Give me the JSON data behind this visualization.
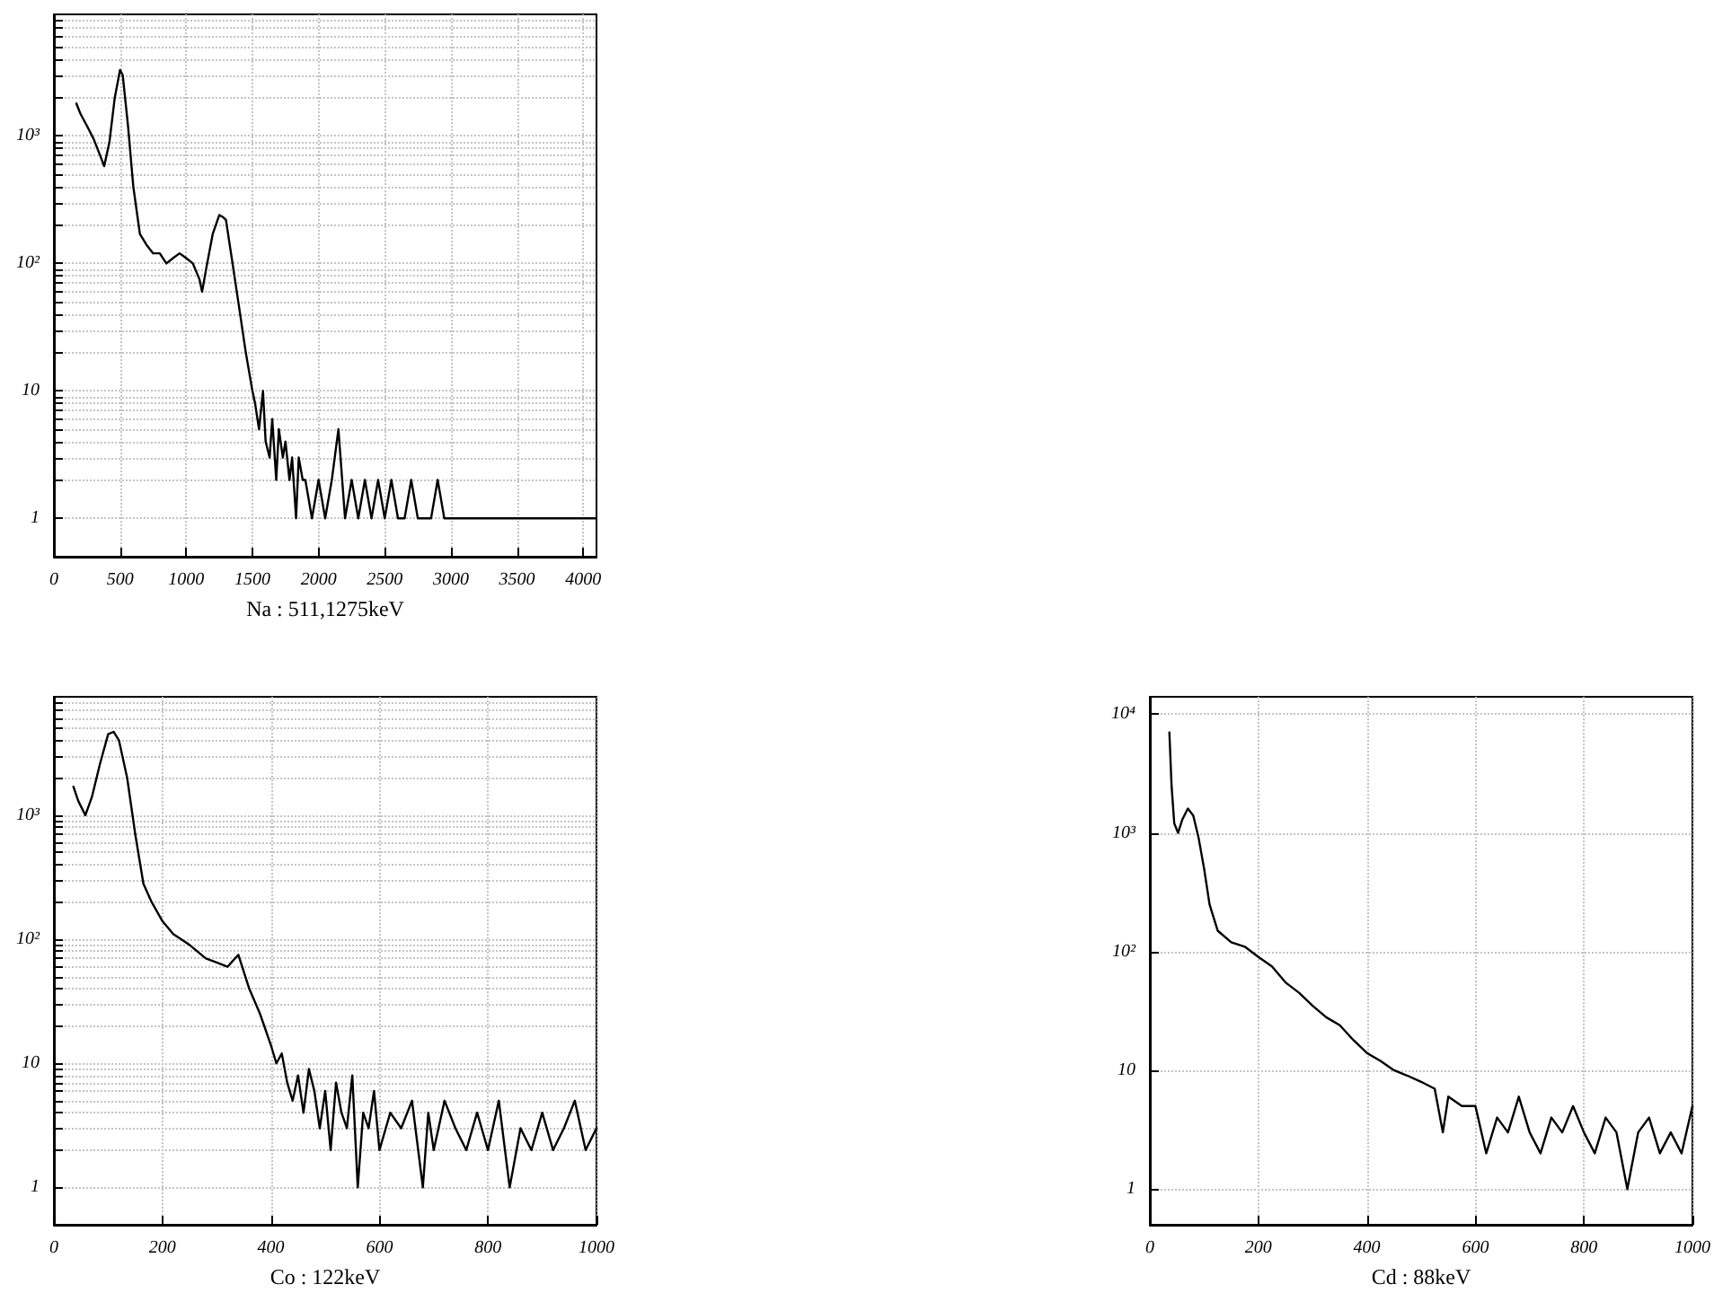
{
  "chart_data": [
    {
      "type": "line",
      "xlabel": "Na : 511,1275keV",
      "log": "y",
      "grid": true,
      "xlim": [
        0,
        4100
      ],
      "ylim": [
        0.5,
        9000
      ],
      "xticks": [
        0,
        500,
        1000,
        1500,
        2000,
        2500,
        3000,
        3500,
        4000
      ],
      "yticks": [
        {
          "value": 1,
          "label": "1"
        },
        {
          "value": 2,
          "label": null
        },
        {
          "value": 3,
          "label": null
        },
        {
          "value": 4,
          "label": null
        },
        {
          "value": 5,
          "label": null
        },
        {
          "value": 6,
          "label": null
        },
        {
          "value": 7,
          "label": null
        },
        {
          "value": 8,
          "label": null
        },
        {
          "value": 9,
          "label": null
        },
        {
          "value": 10,
          "label": "10"
        },
        {
          "value": 20,
          "label": null
        },
        {
          "value": 30,
          "label": null
        },
        {
          "value": 40,
          "label": null
        },
        {
          "value": 50,
          "label": null
        },
        {
          "value": 60,
          "label": null
        },
        {
          "value": 70,
          "label": null
        },
        {
          "value": 80,
          "label": null
        },
        {
          "value": 90,
          "label": null
        },
        {
          "value": 100,
          "label": "10²"
        },
        {
          "value": 200,
          "label": null
        },
        {
          "value": 300,
          "label": null
        },
        {
          "value": 400,
          "label": null
        },
        {
          "value": 500,
          "label": null
        },
        {
          "value": 600,
          "label": null
        },
        {
          "value": 700,
          "label": null
        },
        {
          "value": 800,
          "label": null
        },
        {
          "value": 900,
          "label": null
        },
        {
          "value": 1000,
          "label": "10³"
        },
        {
          "value": 2000,
          "label": null
        },
        {
          "value": 3000,
          "label": null
        },
        {
          "value": 4000,
          "label": null
        },
        {
          "value": 5000,
          "label": null
        },
        {
          "value": 6000,
          "label": null
        },
        {
          "value": 7000,
          "label": null
        },
        {
          "value": 8000,
          "label": null
        }
      ],
      "series": [
        {
          "color": "#000000",
          "x": [
            170,
            200,
            250,
            300,
            350,
            380,
            420,
            460,
            500,
            520,
            560,
            600,
            650,
            700,
            750,
            800,
            850,
            900,
            950,
            1000,
            1050,
            1100,
            1120,
            1150,
            1200,
            1250,
            1280,
            1300,
            1350,
            1400,
            1450,
            1500,
            1520,
            1550,
            1580,
            1600,
            1630,
            1650,
            1680,
            1700,
            1730,
            1750,
            1780,
            1800,
            1830,
            1850,
            1880,
            1900,
            1950,
            2000,
            2050,
            2100,
            2150,
            2200,
            2250,
            2300,
            2350,
            2400,
            2450,
            2500,
            2550,
            2600,
            2650,
            2700,
            2750,
            2800,
            2850,
            2900,
            2950,
            3000,
            3100,
            3200,
            3250,
            3300,
            3400,
            3500,
            3600,
            3700,
            3800,
            3900,
            4000,
            4090
          ],
          "values": [
            1800,
            1500,
            1200,
            950,
            700,
            580,
            900,
            2000,
            3300,
            3000,
            1200,
            400,
            170,
            140,
            120,
            120,
            100,
            110,
            120,
            110,
            100,
            75,
            60,
            90,
            170,
            240,
            230,
            220,
            100,
            45,
            20,
            10,
            8,
            5,
            10,
            4,
            3,
            6,
            2,
            5,
            3,
            4,
            2,
            3,
            1,
            3,
            2,
            2,
            1,
            2,
            1,
            2,
            5,
            1,
            2,
            1,
            2,
            1,
            2,
            1,
            2,
            1,
            1,
            2,
            1,
            1,
            1,
            2,
            1,
            1,
            1,
            1,
            1,
            1,
            1,
            1,
            1,
            1,
            1,
            1,
            1,
            1
          ]
        }
      ]
    },
    {
      "type": "line",
      "xlabel": "Co : 122keV",
      "log": "y",
      "grid": true,
      "xlim": [
        0,
        1000
      ],
      "ylim": [
        0.5,
        9000
      ],
      "xticks": [
        0,
        200,
        400,
        600,
        800,
        1000
      ],
      "yticks": [
        {
          "value": 1,
          "label": "1"
        },
        {
          "value": 2,
          "label": null
        },
        {
          "value": 3,
          "label": null
        },
        {
          "value": 4,
          "label": null
        },
        {
          "value": 5,
          "label": null
        },
        {
          "value": 6,
          "label": null
        },
        {
          "value": 7,
          "label": null
        },
        {
          "value": 8,
          "label": null
        },
        {
          "value": 9,
          "label": null
        },
        {
          "value": 10,
          "label": "10"
        },
        {
          "value": 20,
          "label": null
        },
        {
          "value": 30,
          "label": null
        },
        {
          "value": 40,
          "label": null
        },
        {
          "value": 50,
          "label": null
        },
        {
          "value": 60,
          "label": null
        },
        {
          "value": 70,
          "label": null
        },
        {
          "value": 80,
          "label": null
        },
        {
          "value": 90,
          "label": null
        },
        {
          "value": 100,
          "label": "10²"
        },
        {
          "value": 200,
          "label": null
        },
        {
          "value": 300,
          "label": null
        },
        {
          "value": 400,
          "label": null
        },
        {
          "value": 500,
          "label": null
        },
        {
          "value": 600,
          "label": null
        },
        {
          "value": 700,
          "label": null
        },
        {
          "value": 800,
          "label": null
        },
        {
          "value": 900,
          "label": null
        },
        {
          "value": 1000,
          "label": "10³"
        },
        {
          "value": 2000,
          "label": null
        },
        {
          "value": 3000,
          "label": null
        },
        {
          "value": 4000,
          "label": null
        },
        {
          "value": 5000,
          "label": null
        },
        {
          "value": 6000,
          "label": null
        },
        {
          "value": 7000,
          "label": null
        },
        {
          "value": 8000,
          "label": null
        }
      ],
      "series": [
        {
          "color": "#000000",
          "x": [
            36,
            45,
            58,
            70,
            85,
            100,
            110,
            120,
            135,
            150,
            165,
            180,
            200,
            220,
            250,
            280,
            300,
            320,
            340,
            360,
            380,
            400,
            410,
            420,
            430,
            440,
            450,
            460,
            470,
            480,
            490,
            500,
            510,
            520,
            530,
            540,
            550,
            560,
            570,
            580,
            590,
            600,
            620,
            640,
            660,
            680,
            690,
            700,
            720,
            740,
            760,
            780,
            800,
            820,
            840,
            860,
            880,
            900,
            920,
            940,
            960,
            980,
            1000
          ],
          "values": [
            1700,
            1300,
            1000,
            1400,
            2600,
            4500,
            4700,
            4000,
            2000,
            700,
            280,
            200,
            140,
            110,
            90,
            70,
            65,
            60,
            75,
            40,
            25,
            14,
            10,
            12,
            7,
            5,
            8,
            4,
            9,
            6,
            3,
            6,
            2,
            7,
            4,
            3,
            8,
            1,
            4,
            3,
            6,
            2,
            4,
            3,
            5,
            1,
            4,
            2,
            5,
            3,
            2,
            4,
            2,
            5,
            1,
            3,
            2,
            4,
            2,
            3,
            5,
            2,
            3
          ]
        }
      ]
    },
    {
      "type": "line",
      "xlabel": "Cd : 88keV",
      "log": "y",
      "grid": true,
      "xlim": [
        0,
        1000
      ],
      "ylim": [
        0.5,
        14000
      ],
      "xticks": [
        0,
        200,
        400,
        600,
        800,
        1000
      ],
      "yticks": [
        {
          "value": 1,
          "label": "1"
        },
        {
          "value": 10,
          "label": "10"
        },
        {
          "value": 100,
          "label": "10²"
        },
        {
          "value": 1000,
          "label": "10³"
        },
        {
          "value": 10000,
          "label": "10⁴"
        }
      ],
      "series": [
        {
          "color": "#000000",
          "x": [
            36,
            40,
            45,
            52,
            60,
            70,
            80,
            90,
            100,
            110,
            125,
            150,
            175,
            200,
            225,
            250,
            275,
            300,
            325,
            350,
            375,
            400,
            425,
            450,
            475,
            500,
            525,
            540,
            550,
            575,
            600,
            620,
            640,
            660,
            680,
            700,
            720,
            740,
            760,
            780,
            800,
            820,
            840,
            860,
            880,
            900,
            920,
            940,
            960,
            980,
            1000
          ],
          "values": [
            7000,
            2500,
            1200,
            1000,
            1300,
            1600,
            1400,
            900,
            500,
            250,
            150,
            120,
            110,
            90,
            75,
            55,
            45,
            35,
            28,
            24,
            18,
            14,
            12,
            10,
            9,
            8,
            7,
            3,
            6,
            5,
            5,
            2,
            4,
            3,
            6,
            3,
            2,
            4,
            3,
            5,
            3,
            2,
            4,
            3,
            1,
            3,
            4,
            2,
            3,
            2,
            5
          ]
        }
      ]
    }
  ]
}
